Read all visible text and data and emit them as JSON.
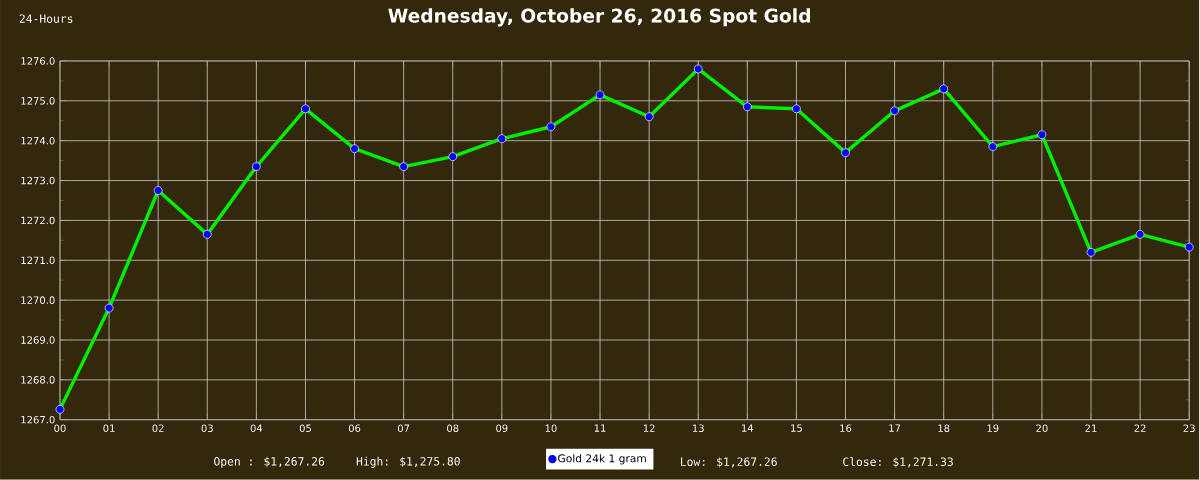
{
  "chart_data": {
    "type": "line",
    "title": "Wednesday, October 26, 2016 Spot Gold",
    "annotations": [
      "24-Hours",
      "Open : $1,267.26",
      "High: $1,275.80",
      "Low: $1,267.26",
      "Close: $1,271.33"
    ],
    "categories": [
      "00",
      "01",
      "02",
      "03",
      "04",
      "05",
      "06",
      "07",
      "08",
      "09",
      "10",
      "11",
      "12",
      "13",
      "14",
      "15",
      "16",
      "17",
      "18",
      "19",
      "20",
      "21",
      "22",
      "23"
    ],
    "series": [
      {
        "name": "Gold 24k 1 gram",
        "color": "#00ee00",
        "values": [
          1267.26,
          1269.8,
          1272.75,
          1271.65,
          1273.35,
          1274.8,
          1273.8,
          1273.35,
          1273.6,
          1274.05,
          1274.35,
          1275.15,
          1274.6,
          1275.8,
          1274.85,
          1274.8,
          1273.7,
          1274.75,
          1275.3,
          1273.85,
          1274.15,
          1271.2,
          1271.65,
          1271.33
        ]
      }
    ],
    "ylim": [
      1267,
      1276
    ],
    "yticks": [
      {
        "value": 1267,
        "label": "1267.0"
      },
      {
        "value": 1268,
        "label": "1268.0"
      },
      {
        "value": 1269,
        "label": "1269.0"
      },
      {
        "value": 1270,
        "label": "1270.0"
      },
      {
        "value": 1271,
        "label": "1271.0"
      },
      {
        "value": 1272,
        "label": "1272.0"
      },
      {
        "value": 1273,
        "label": "1273.0"
      },
      {
        "value": 1274,
        "label": "1274.0"
      },
      {
        "value": 1275,
        "label": "1275.0"
      },
      {
        "value": 1276,
        "label": "1276.0"
      }
    ],
    "grid": true,
    "legend": "bottom",
    "marker": "circle",
    "line_style": "solid"
  }
}
